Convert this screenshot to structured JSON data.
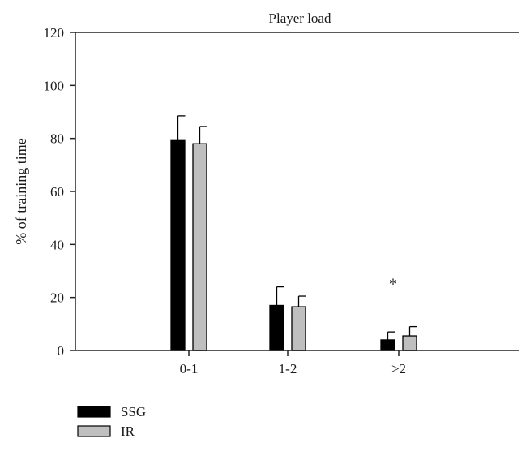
{
  "chart_data": {
    "type": "bar",
    "title": "Player load",
    "xlabel": "",
    "ylabel": "% of training time",
    "categories": [
      "0-1",
      "1-2",
      ">2"
    ],
    "ylim": [
      0,
      120
    ],
    "yticks": [
      0,
      20,
      40,
      60,
      80,
      100,
      120
    ],
    "grid": false,
    "legend_position": "bottom-left",
    "series": [
      {
        "name": "SSG",
        "values": [
          79.5,
          17,
          4
        ],
        "errors": [
          9,
          7,
          3
        ],
        "color": "#000000"
      },
      {
        "name": "IR",
        "values": [
          78,
          16.5,
          5.5
        ],
        "errors": [
          6.5,
          4,
          3.5
        ],
        "color": "#bfbfbf"
      }
    ],
    "annotations": [
      {
        "text": "*",
        "category": ">2",
        "y": 25
      }
    ]
  }
}
